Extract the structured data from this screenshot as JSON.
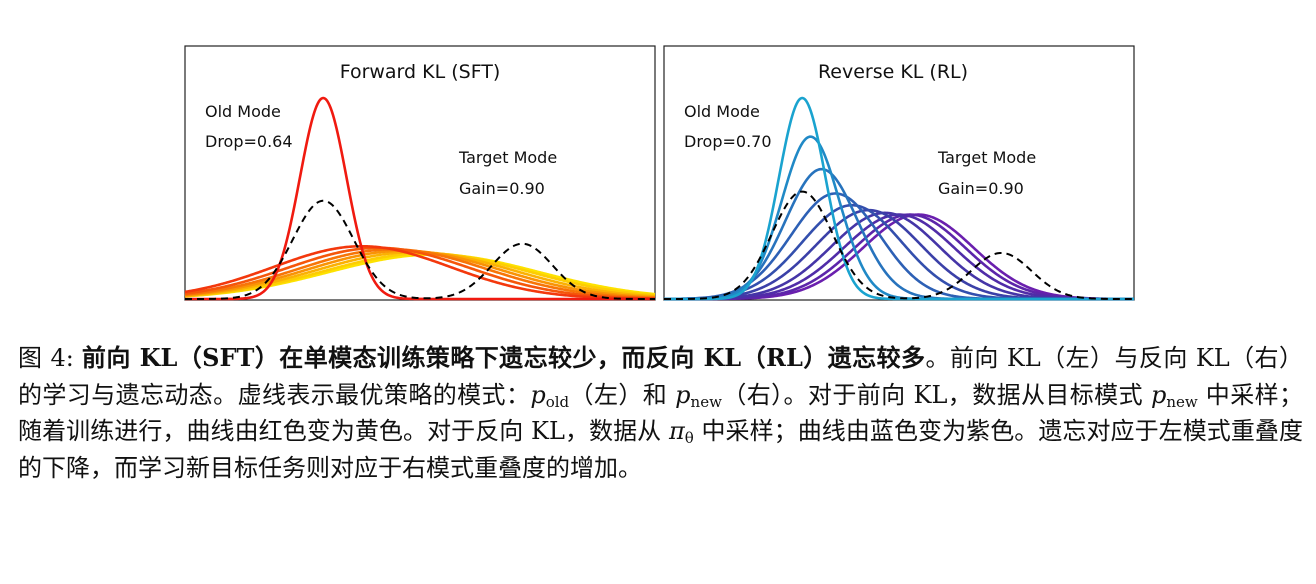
{
  "chart_data": [
    {
      "type": "line",
      "title": "Forward KL (SFT)",
      "xlabel": "",
      "ylabel": "",
      "grid": false,
      "colormap": "red-to-yellow",
      "target": {
        "style": "dashed",
        "color": "#000000",
        "components": [
          {
            "mean": -1.0,
            "std": 0.55,
            "weight": 0.64
          },
          {
            "mean": 2.6,
            "std": 0.55,
            "weight": 0.36
          }
        ]
      },
      "series": [
        {
          "mean": -1.0,
          "std": 0.42,
          "color": "#f01a10"
        },
        {
          "mean": -0.3,
          "std": 1.6,
          "color": "#f3380d"
        },
        {
          "mean": 0.0,
          "std": 1.65,
          "color": "#f5560a"
        },
        {
          "mean": 0.25,
          "std": 1.7,
          "color": "#f77507"
        },
        {
          "mean": 0.45,
          "std": 1.75,
          "color": "#f99305"
        },
        {
          "mean": 0.65,
          "std": 1.8,
          "color": "#fbb103"
        },
        {
          "mean": 0.85,
          "std": 1.85,
          "color": "#fdcd02"
        },
        {
          "mean": 1.0,
          "std": 1.9,
          "color": "#fde200"
        }
      ],
      "annotations": [
        {
          "text": "Old Mode",
          "anchor": "upper-left"
        },
        {
          "text": "Drop=0.64",
          "anchor": "upper-left"
        },
        {
          "text": "Target Mode",
          "anchor": "right"
        },
        {
          "text": "Gain=0.90",
          "anchor": "right"
        }
      ]
    },
    {
      "type": "line",
      "title": "Reverse KL (RL)",
      "xlabel": "",
      "ylabel": "",
      "grid": false,
      "colormap": "blue-to-purple",
      "target": {
        "style": "dashed",
        "color": "#000000",
        "components": [
          {
            "mean": -1.0,
            "std": 0.55,
            "weight": 0.7
          },
          {
            "mean": 2.6,
            "std": 0.55,
            "weight": 0.3
          }
        ]
      },
      "series": [
        {
          "mean": -1.0,
          "std": 0.42,
          "color": "#1aa3cf"
        },
        {
          "mean": -0.85,
          "std": 0.52,
          "color": "#2089c6"
        },
        {
          "mean": -0.65,
          "std": 0.65,
          "color": "#2773bd"
        },
        {
          "mean": -0.4,
          "std": 0.8,
          "color": "#2d60b5"
        },
        {
          "mean": -0.1,
          "std": 0.9,
          "color": "#334fad"
        },
        {
          "mean": 0.2,
          "std": 0.95,
          "color": "#3b40a8"
        },
        {
          "mean": 0.5,
          "std": 0.98,
          "color": "#4535a7"
        },
        {
          "mean": 0.75,
          "std": 1.0,
          "color": "#502ca8"
        },
        {
          "mean": 0.95,
          "std": 1.0,
          "color": "#5c25aa"
        },
        {
          "mean": 1.1,
          "std": 1.0,
          "color": "#6a1fae"
        }
      ],
      "annotations": [
        {
          "text": "Old Mode",
          "anchor": "upper-left"
        },
        {
          "text": "Drop=0.70",
          "anchor": "upper-left"
        },
        {
          "text": "Target Mode",
          "anchor": "right"
        },
        {
          "text": "Gain=0.90",
          "anchor": "right"
        }
      ]
    }
  ],
  "caption": {
    "fig_label": "图 4: ",
    "bold_text": "前向 KL（SFT）在单模态训练策略下遗忘较少，而反向 KL（RL）遗忘较多",
    "t1": "。前向 KL（左）与反向 KL（右）的学习与遗忘动态。虚线表示最优策略的模式：",
    "p_symbol": "p",
    "sub_old": "old",
    "t2": "（左）和 ",
    "sub_new": "new",
    "t3": "（右）。对于前向 KL，数据从目标模式 ",
    "t4": " 中采样；随着训练进行，曲线由红色变为黄色。对于反向 KL，数据从 ",
    "pi_symbol": "π",
    "sub_theta": "θ",
    "t5": " 中采样；曲线由蓝色变为紫色。遗忘对应于左模式重叠度的下降，而学习新目标任务则对应于右模式重叠度的增加。"
  }
}
